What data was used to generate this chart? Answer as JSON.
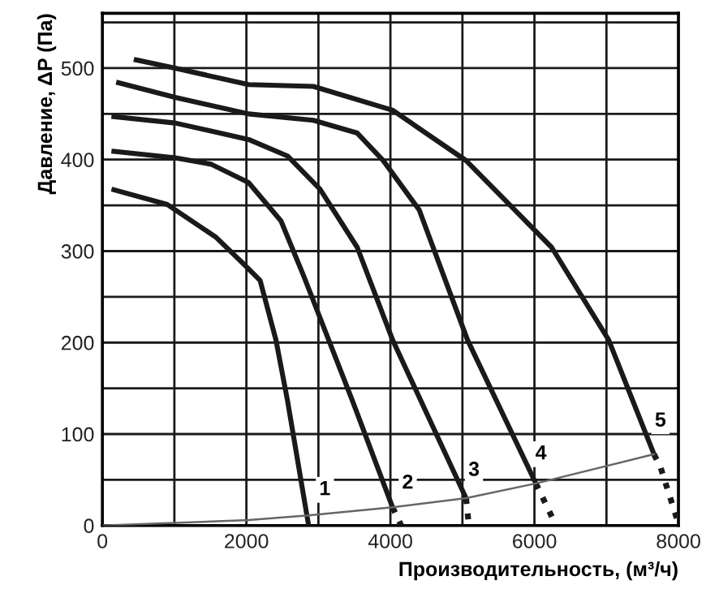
{
  "chart_data": {
    "type": "line",
    "xlabel": "Производительность, (м³/ч)",
    "ylabel": "Давление, ΔP (Па)",
    "xlim": [
      0,
      8000
    ],
    "ylim": [
      0,
      560
    ],
    "xticks": [
      0,
      {
        "value": 1000,
        "label": null
      },
      2000,
      {
        "value": 3000,
        "label": null
      },
      4000,
      {
        "value": 5000,
        "label": null
      },
      6000,
      {
        "value": 7000,
        "label": null
      },
      8000
    ],
    "yticks": [
      0,
      {
        "value": 50,
        "label": null
      },
      100,
      {
        "value": 150,
        "label": null
      },
      200,
      {
        "value": 250,
        "label": null
      },
      300,
      {
        "value": 350,
        "label": null
      },
      400,
      {
        "value": 450,
        "label": null
      },
      500,
      {
        "value": 550,
        "label": null
      }
    ],
    "grid": true,
    "marker": "none",
    "series": [
      {
        "color": "#1a1a1a",
        "line_style": "solid",
        "x": [
          160,
          900,
          1580,
          1960,
          2190,
          2410,
          2570,
          2860
        ],
        "values": [
          367,
          351,
          315,
          286,
          268,
          203,
          137,
          2
        ]
      },
      {
        "color": "#1a1a1a",
        "line_style": "solid",
        "x": [
          160,
          1010,
          1510,
          2030,
          2480,
          2790,
          3470,
          4030
        ],
        "values": [
          409,
          402,
          395,
          375,
          333,
          274,
          137,
          20
        ]
      },
      {
        "color": "#1a1a1a",
        "line_style": "dotted",
        "x": [
          4030,
          4150
        ],
        "values": [
          20,
          0
        ]
      },
      {
        "color": "#1a1a1a",
        "line_style": "solid",
        "x": [
          160,
          1010,
          2030,
          2570,
          3020,
          3540,
          4030,
          5050
        ],
        "values": [
          447,
          440,
          422,
          404,
          368,
          304,
          203,
          30
        ]
      },
      {
        "color": "#1a1a1a",
        "line_style": "dotted",
        "x": [
          5050,
          5090
        ],
        "values": [
          30,
          0
        ]
      },
      {
        "color": "#1a1a1a",
        "line_style": "solid",
        "x": [
          225,
          1010,
          2030,
          2930,
          3540,
          3900,
          4400,
          4820,
          5070,
          6020
        ],
        "values": [
          484,
          468,
          450,
          443,
          429,
          399,
          345,
          256,
          203,
          46
        ]
      },
      {
        "color": "#1a1a1a",
        "line_style": "dotted",
        "x": [
          6020,
          6300
        ],
        "values": [
          46,
          0
        ]
      },
      {
        "color": "#1a1a1a",
        "line_style": "solid",
        "x": [
          470,
          1010,
          2030,
          2930,
          4030,
          5050,
          6240,
          7030,
          7660
        ],
        "values": [
          509,
          500,
          482,
          480,
          454,
          399,
          304,
          203,
          78
        ]
      },
      {
        "color": "#1a1a1a",
        "line_style": "dotted",
        "x": [
          7660,
          7750,
          8000
        ],
        "values": [
          78,
          64,
          2
        ]
      },
      {
        "color": "#666666",
        "line_style": "solid",
        "x": [
          0,
          2030,
          2860,
          4030,
          5050,
          6020,
          7660
        ],
        "values": [
          0,
          6,
          11,
          20,
          30,
          46,
          78
        ]
      }
    ],
    "annotations": [
      {
        "text": "1",
        "x": 3090,
        "y": 39
      },
      {
        "text": "2",
        "x": 4240,
        "y": 46
      },
      {
        "text": "3",
        "x": 5160,
        "y": 60
      },
      {
        "text": "4",
        "x": 6090,
        "y": 78
      },
      {
        "text": "5",
        "x": 7750,
        "y": 114
      }
    ]
  }
}
